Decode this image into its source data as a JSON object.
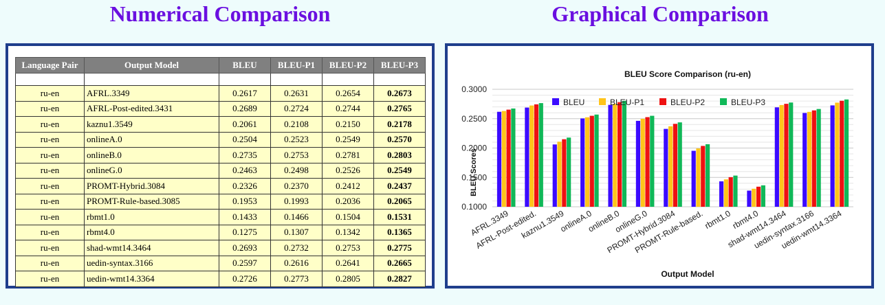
{
  "headings": {
    "left": "Numerical Comparison",
    "right": "Graphical Comparison"
  },
  "table": {
    "headers": [
      "Language Pair",
      "Output Model",
      "BLEU",
      "BLEU-P1",
      "BLEU-P2",
      "BLEU-P3"
    ],
    "rows": [
      [
        "ru-en",
        "AFRL.3349",
        "0.2617",
        "0.2631",
        "0.2654",
        "0.2673"
      ],
      [
        "ru-en",
        "AFRL-Post-edited.3431",
        "0.2689",
        "0.2724",
        "0.2744",
        "0.2765"
      ],
      [
        "ru-en",
        "kaznu1.3549",
        "0.2061",
        "0.2108",
        "0.2150",
        "0.2178"
      ],
      [
        "ru-en",
        "onlineA.0",
        "0.2504",
        "0.2523",
        "0.2549",
        "0.2570"
      ],
      [
        "ru-en",
        "onlineB.0",
        "0.2735",
        "0.2753",
        "0.2781",
        "0.2803"
      ],
      [
        "ru-en",
        "onlineG.0",
        "0.2463",
        "0.2498",
        "0.2526",
        "0.2549"
      ],
      [
        "ru-en",
        "PROMT-Hybrid.3084",
        "0.2326",
        "0.2370",
        "0.2412",
        "0.2437"
      ],
      [
        "ru-en",
        "PROMT-Rule-based.3085",
        "0.1953",
        "0.1993",
        "0.2036",
        "0.2065"
      ],
      [
        "ru-en",
        "rbmt1.0",
        "0.1433",
        "0.1466",
        "0.1504",
        "0.1531"
      ],
      [
        "ru-en",
        "rbmt4.0",
        "0.1275",
        "0.1307",
        "0.1342",
        "0.1365"
      ],
      [
        "ru-en",
        "shad-wmt14.3464",
        "0.2693",
        "0.2732",
        "0.2753",
        "0.2775"
      ],
      [
        "ru-en",
        "uedin-syntax.3166",
        "0.2597",
        "0.2616",
        "0.2641",
        "0.2665"
      ],
      [
        "ru-en",
        "uedin-wmt14.3364",
        "0.2726",
        "0.2773",
        "0.2805",
        "0.2827"
      ]
    ]
  },
  "chart_data": {
    "type": "bar",
    "title": "BLEU Score Comparison (ru-en)",
    "xlabel": "Output Model",
    "ylabel": "BLEU Scores",
    "ylim": [
      0.1,
      0.3
    ],
    "yticks": [
      "0.1000",
      "0.1500",
      "0.2000",
      "0.2500",
      "0.3000"
    ],
    "grid": true,
    "legend_position": "top",
    "categories": [
      "AFRL.3349",
      "AFRL-Post-edited.",
      "kaznu1.3549",
      "onlineA.0",
      "onlineB.0",
      "onlineG.0",
      "PROMT-Hybrid.3084",
      "PROMT-Rule-based.",
      "rbmt1.0",
      "rbmt4.0",
      "shad-wmt14.3464",
      "uedin-syntax.3166",
      "uedin-wmt14.3364"
    ],
    "series": [
      {
        "name": "BLEU",
        "color": "#3b0bff",
        "values": [
          0.2617,
          0.2689,
          0.2061,
          0.2504,
          0.2735,
          0.2463,
          0.2326,
          0.1953,
          0.1433,
          0.1275,
          0.2693,
          0.2597,
          0.2726
        ]
      },
      {
        "name": "BLEU-P1",
        "color": "#ffc41a",
        "values": [
          0.2631,
          0.2724,
          0.2108,
          0.2523,
          0.2753,
          0.2498,
          0.237,
          0.1993,
          0.1466,
          0.1307,
          0.2732,
          0.2616,
          0.2773
        ]
      },
      {
        "name": "BLEU-P2",
        "color": "#ee1111",
        "values": [
          0.2654,
          0.2744,
          0.215,
          0.2549,
          0.2781,
          0.2526,
          0.2412,
          0.2036,
          0.1504,
          0.1342,
          0.2753,
          0.2641,
          0.2805
        ]
      },
      {
        "name": "BLEU-P3",
        "color": "#10b858",
        "values": [
          0.2673,
          0.2765,
          0.2178,
          0.257,
          0.2803,
          0.2549,
          0.2437,
          0.2065,
          0.1531,
          0.1365,
          0.2775,
          0.2665,
          0.2827
        ]
      }
    ]
  }
}
